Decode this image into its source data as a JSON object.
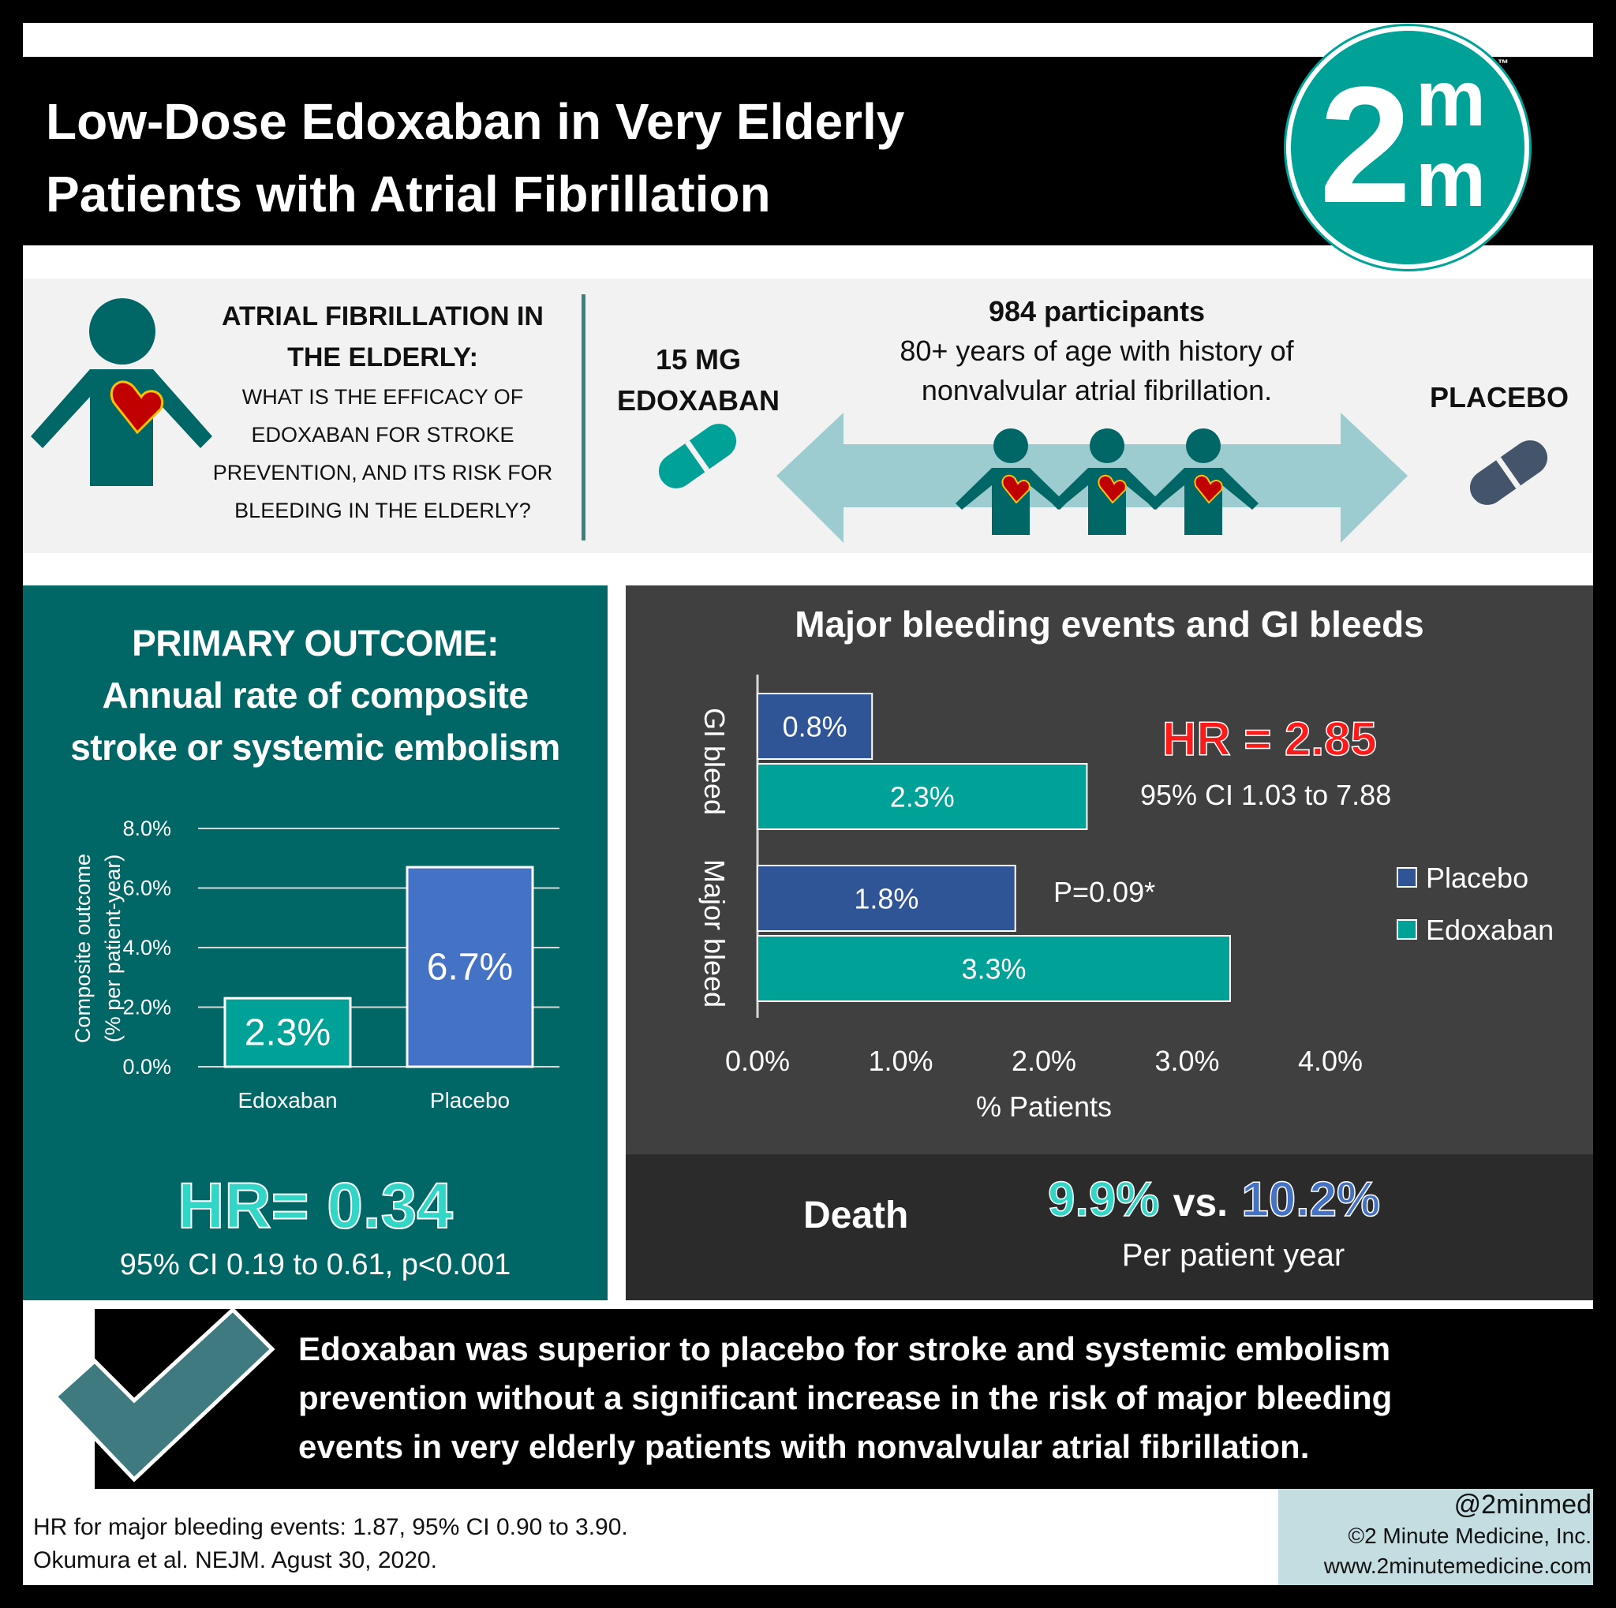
{
  "title": {
    "line1": "Low-Dose Edoxaban in Very Elderly",
    "line2": "Patients with Atrial Fibrillation"
  },
  "logo": {
    "numeral": "2",
    "letters": "m",
    "tm": "™"
  },
  "question": {
    "heading1": "ATRIAL FIBRILLATION IN",
    "heading2": "THE ELDERLY:",
    "lines": [
      "WHAT IS THE EFFICACY OF",
      "EDOXABAN FOR STROKE",
      "PREVENTION, AND ITS RISK FOR",
      "BLEEDING IN THE ELDERLY?"
    ]
  },
  "design": {
    "drug1": "15 MG",
    "drug2": "EDOXABAN",
    "participants": "984 participants",
    "desc1": "80+ years of age with history of",
    "desc2": "nonvalvular atrial fibrillation.",
    "placebo": "PLACEBO"
  },
  "colors": {
    "teal": "#006766",
    "edoxaban": "#00a196",
    "placebo": "#2f5597",
    "placebo_left": "#4472c4",
    "hr_red": "#ff1a1a",
    "dark": "#404040"
  },
  "primary": {
    "heading1": "PRIMARY OUTCOME:",
    "heading2": "Annual rate of composite",
    "heading3": "stroke or systemic embolism",
    "hr": "HR= 0.34",
    "ci": "95% CI 0.19 to 0.61, p<0.001"
  },
  "bleeding": {
    "hr": "HR = 2.85",
    "ci": "95% CI 1.03 to 7.88",
    "p": "P=0.09*"
  },
  "death": {
    "label": "Death",
    "edox": "9.9%",
    "vs": "vs.",
    "placebo": "10.2%",
    "unit": "Per patient year"
  },
  "conclusion": [
    "Edoxaban was superior to placebo for stroke and systemic embolism",
    "prevention without a significant increase in the risk of major bleeding",
    "events in very elderly patients with nonvalvular atrial fibrillation."
  ],
  "footer": {
    "note1": "HR for major bleeding events: 1.87, 95% CI 0.90 to 3.90.",
    "note2": "Okumura et al. NEJM. Agust 30, 2020.",
    "handle": "@2minmed",
    "copyright": "©2 Minute Medicine, Inc.",
    "url": "www.2minutemedicine.com"
  },
  "chart_data": [
    {
      "type": "bar",
      "title": "",
      "ylabel": "Composite outcome (% per patient-year)",
      "ylim": [
        0,
        8
      ],
      "ticks": [
        "0.0%",
        "2.0%",
        "4.0%",
        "6.0%",
        "8.0%"
      ],
      "categories": [
        "Edoxaban",
        "Placebo"
      ],
      "values": [
        2.3,
        6.7
      ],
      "labels": [
        "2.3%",
        "6.7%"
      ],
      "grid": true
    },
    {
      "type": "bar",
      "orientation": "horizontal",
      "title": "Major bleeding events and GI bleeds",
      "xlabel": "% Patients",
      "xlim": [
        0,
        4
      ],
      "ticks": [
        "0.0%",
        "1.0%",
        "2.0%",
        "3.0%",
        "4.0%"
      ],
      "categories": [
        "GI bleed",
        "Major bleed"
      ],
      "series": [
        {
          "name": "Placebo",
          "values": [
            0.8,
            1.8
          ],
          "labels": [
            "0.8%",
            "1.8%"
          ]
        },
        {
          "name": "Edoxaban",
          "values": [
            2.3,
            3.3
          ],
          "labels": [
            "2.3%",
            "3.3%"
          ]
        }
      ],
      "legend": "right",
      "grid": false
    }
  ]
}
